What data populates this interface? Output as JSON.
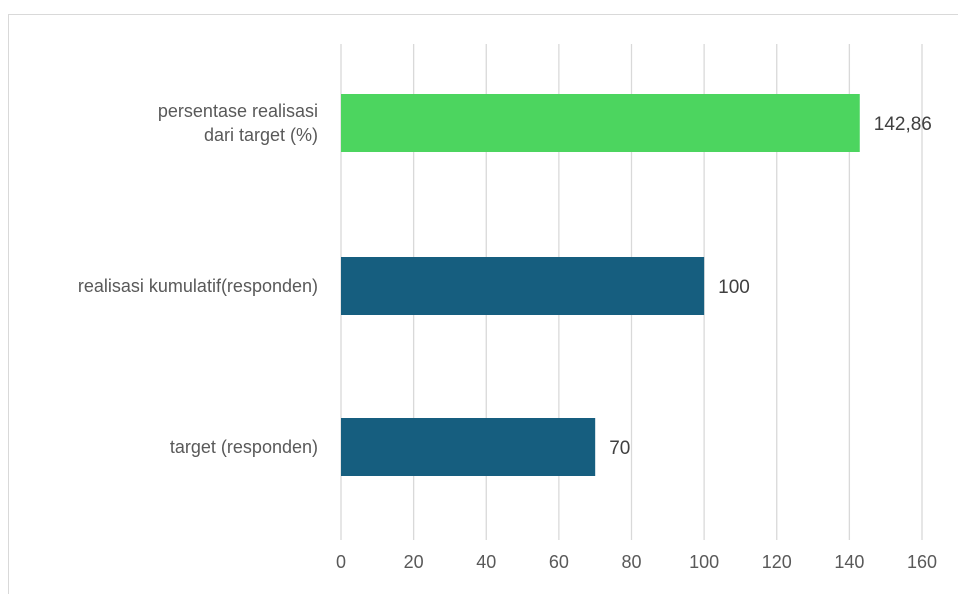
{
  "chart_data": {
    "type": "bar",
    "orientation": "horizontal",
    "title": "",
    "xlabel": "",
    "ylabel": "",
    "categories": [
      [
        "persentase realisasi",
        "dari target (%)"
      ],
      [
        "realisasi kumulatif(responden)"
      ],
      [
        "target (responden)"
      ]
    ],
    "values": [
      142.86,
      100,
      70
    ],
    "data_labels": [
      "142,86",
      "100",
      "70"
    ],
    "colors": [
      "#4CD55F",
      "#165E7F",
      "#165E7F"
    ],
    "xlim": [
      0,
      160
    ],
    "ticks": [
      0,
      20,
      40,
      60,
      80,
      100,
      120,
      140,
      160
    ],
    "tick_labels": [
      "0",
      "20",
      "40",
      "60",
      "80",
      "100",
      "120",
      "140",
      "160"
    ],
    "grid": true,
    "legend": "none"
  }
}
